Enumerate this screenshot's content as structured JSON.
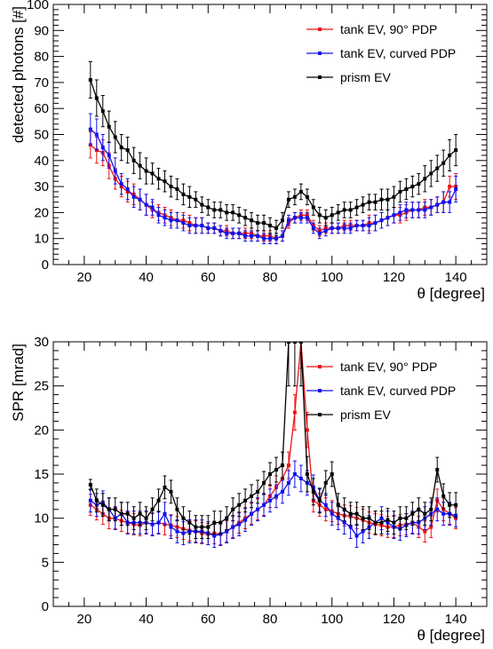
{
  "chart_data": [
    {
      "type": "line",
      "xlabel": "θ [degree]",
      "ylabel": "detected photons [#]",
      "xlim": [
        10,
        150
      ],
      "ylim": [
        0,
        100
      ],
      "xticks": [
        20,
        40,
        60,
        80,
        100,
        120,
        140
      ],
      "xtick_labels": [
        "20",
        "40",
        "60",
        "80",
        "100",
        "120",
        "140"
      ],
      "yticks": [
        0,
        10,
        20,
        30,
        40,
        50,
        60,
        70,
        80,
        90,
        100
      ],
      "ytick_labels": [
        "0",
        "10",
        "20",
        "30",
        "40",
        "50",
        "60",
        "70",
        "80",
        "90",
        "100"
      ],
      "legend_position": "top-right",
      "x": [
        22,
        24,
        26,
        28,
        30,
        32,
        34,
        36,
        38,
        40,
        42,
        44,
        46,
        48,
        50,
        52,
        54,
        56,
        58,
        60,
        62,
        64,
        66,
        68,
        70,
        72,
        74,
        76,
        78,
        80,
        82,
        84,
        86,
        88,
        90,
        92,
        94,
        96,
        98,
        100,
        102,
        104,
        106,
        108,
        110,
        112,
        114,
        116,
        118,
        120,
        122,
        124,
        126,
        128,
        130,
        132,
        134,
        136,
        138,
        140
      ],
      "series": [
        {
          "name": "tank EV, 90° PDP",
          "color": "#ee1111",
          "values": [
            46,
            44,
            43,
            38,
            33,
            30,
            28,
            27,
            25,
            23,
            21,
            20,
            19,
            18,
            17,
            17,
            16,
            15,
            15,
            14,
            14,
            13,
            13,
            12,
            12,
            12,
            12,
            11,
            11,
            11,
            10,
            11,
            16,
            18,
            19,
            19,
            15,
            13,
            14,
            14,
            14,
            15,
            15,
            15,
            15,
            16,
            16,
            17,
            18,
            19,
            19,
            20,
            21,
            21,
            22,
            22,
            23,
            24,
            30,
            30
          ],
          "errors": [
            5,
            5,
            5,
            5,
            4,
            4,
            4,
            4,
            4,
            4,
            3,
            3,
            3,
            3,
            3,
            3,
            3,
            3,
            3,
            2,
            2,
            2,
            2,
            2,
            2,
            2,
            2,
            2,
            2,
            2,
            2,
            2,
            2,
            2,
            2,
            2,
            2,
            2,
            2,
            2,
            2,
            2,
            2,
            2,
            2,
            3,
            3,
            3,
            3,
            3,
            3,
            3,
            3,
            3,
            3,
            3,
            3,
            4,
            4,
            5
          ]
        },
        {
          "name": "tank EV, curved PDP",
          "color": "#1111ee",
          "values": [
            52,
            50,
            45,
            42,
            36,
            31,
            29,
            26,
            25,
            23,
            22,
            19,
            18,
            17,
            17,
            16,
            15,
            15,
            15,
            14,
            14,
            13,
            12,
            12,
            12,
            11,
            11,
            11,
            10,
            10,
            10,
            11,
            17,
            18,
            18,
            18,
            14,
            12,
            13,
            14,
            14,
            14,
            14,
            15,
            15,
            15,
            16,
            17,
            18,
            19,
            20,
            21,
            21,
            21,
            21,
            22,
            23,
            24,
            24,
            29
          ],
          "errors": [
            6,
            6,
            5,
            5,
            5,
            4,
            4,
            4,
            4,
            4,
            3,
            3,
            3,
            3,
            3,
            3,
            3,
            3,
            3,
            2,
            2,
            2,
            2,
            2,
            2,
            2,
            2,
            2,
            2,
            2,
            2,
            2,
            2,
            2,
            2,
            2,
            2,
            2,
            2,
            2,
            2,
            2,
            2,
            2,
            2,
            3,
            3,
            3,
            3,
            3,
            3,
            3,
            3,
            3,
            3,
            3,
            3,
            4,
            4,
            5
          ]
        },
        {
          "name": "prism EV",
          "color": "#000000",
          "values": [
            71,
            64,
            59,
            53,
            49,
            45,
            44,
            40,
            38,
            36,
            35,
            33,
            32,
            30,
            29,
            27,
            26,
            25,
            23,
            22,
            21,
            21,
            20,
            20,
            19,
            18,
            17,
            16,
            16,
            15,
            14,
            17,
            25,
            26,
            28,
            26,
            22,
            19,
            18,
            19,
            20,
            21,
            21,
            22,
            23,
            24,
            24,
            25,
            25,
            26,
            28,
            29,
            30,
            31,
            33,
            35,
            37,
            39,
            42,
            44
          ],
          "errors": [
            7,
            7,
            6,
            6,
            6,
            5,
            5,
            5,
            5,
            5,
            4,
            4,
            4,
            4,
            4,
            4,
            4,
            3,
            3,
            3,
            3,
            3,
            3,
            3,
            3,
            3,
            3,
            3,
            3,
            3,
            3,
            3,
            3,
            3,
            3,
            3,
            3,
            3,
            3,
            3,
            3,
            3,
            3,
            3,
            3,
            3,
            3,
            4,
            4,
            4,
            4,
            4,
            4,
            4,
            5,
            5,
            5,
            5,
            6,
            6
          ]
        }
      ]
    },
    {
      "type": "line",
      "xlabel": "θ [degree]",
      "ylabel": "SPR [mrad]",
      "xlim": [
        10,
        150
      ],
      "ylim": [
        0,
        30
      ],
      "xticks": [
        20,
        40,
        60,
        80,
        100,
        120,
        140
      ],
      "xtick_labels": [
        "20",
        "40",
        "60",
        "80",
        "100",
        "120",
        "140"
      ],
      "yticks": [
        0,
        5,
        10,
        15,
        20,
        25,
        30
      ],
      "ytick_labels": [
        "0",
        "5",
        "10",
        "15",
        "20",
        "25",
        "30"
      ],
      "legend_position": "top-right",
      "x": [
        22,
        24,
        26,
        28,
        30,
        32,
        34,
        36,
        38,
        40,
        42,
        44,
        46,
        48,
        50,
        52,
        54,
        56,
        58,
        60,
        62,
        64,
        66,
        68,
        70,
        72,
        74,
        76,
        78,
        80,
        82,
        84,
        86,
        88,
        90,
        92,
        94,
        96,
        98,
        100,
        102,
        104,
        106,
        108,
        110,
        112,
        114,
        116,
        118,
        120,
        122,
        124,
        126,
        128,
        130,
        132,
        134,
        136,
        138,
        140
      ],
      "series": [
        {
          "name": "tank EV, 90° PDP",
          "color": "#ee1111",
          "values": [
            11.5,
            11,
            10.5,
            10,
            10,
            9.7,
            9.5,
            9.3,
            9.2,
            9.5,
            9.3,
            9.5,
            9.3,
            9.2,
            9,
            8.8,
            8.6,
            8.5,
            8.3,
            8.2,
            8.3,
            8.2,
            8.5,
            9,
            9.5,
            10,
            10.5,
            11,
            11.5,
            12.5,
            13.5,
            14.5,
            16,
            22,
            30,
            20,
            12,
            11.5,
            11,
            10.8,
            10.5,
            10.3,
            10.2,
            10,
            9.8,
            9.5,
            9.3,
            9.2,
            9,
            9,
            9.2,
            9.3,
            9.5,
            9,
            8.5,
            9,
            12,
            11,
            10.5,
            10
          ],
          "errors": [
            1.2,
            1.2,
            1.2,
            1.2,
            1.2,
            1.2,
            1.2,
            1.2,
            1.2,
            1.2,
            1.2,
            1.2,
            1.2,
            1.2,
            1.2,
            1.2,
            1.2,
            1.2,
            1.2,
            1.2,
            1.2,
            1.2,
            1.2,
            1.2,
            1.2,
            1.2,
            1.2,
            1.2,
            1.2,
            1.3,
            1.3,
            1.4,
            1.5,
            2,
            3,
            2,
            1.3,
            1.3,
            1.3,
            1.2,
            1.2,
            1.2,
            1.2,
            1.2,
            1.2,
            1.2,
            1.2,
            1.2,
            1.2,
            1.2,
            1.2,
            1.2,
            1.2,
            1.2,
            1.2,
            1.2,
            1.3,
            1.3,
            1.2,
            1.2
          ]
        },
        {
          "name": "tank EV, curved PDP",
          "color": "#1111ee",
          "values": [
            12,
            11.5,
            11.8,
            11,
            10,
            10.5,
            9.5,
            9.5,
            9.5,
            9.5,
            9.3,
            9.5,
            10.5,
            9,
            8.5,
            8.3,
            8.5,
            8.5,
            8.5,
            8.3,
            8,
            8.2,
            8.5,
            9,
            9.3,
            9.8,
            10.5,
            11,
            11.5,
            12,
            12.5,
            13,
            14,
            15,
            14.5,
            14,
            13.5,
            12,
            11.5,
            10.5,
            10,
            9.5,
            9,
            8,
            8.5,
            9,
            9.5,
            10,
            9.5,
            9,
            8.8,
            9.2,
            9.5,
            9.5,
            10,
            10.5,
            11,
            10.5,
            10.5,
            10.3
          ],
          "errors": [
            1.3,
            1.3,
            1.3,
            1.3,
            1.3,
            1.3,
            1.3,
            1.3,
            1.3,
            1.3,
            1.3,
            1.3,
            1.3,
            1.3,
            1.3,
            1.3,
            1.3,
            1.3,
            1.3,
            1.3,
            1.3,
            1.3,
            1.3,
            1.3,
            1.3,
            1.3,
            1.3,
            1.3,
            1.3,
            1.3,
            1.3,
            1.3,
            1.4,
            1.5,
            1.5,
            1.4,
            1.4,
            1.3,
            1.3,
            1.3,
            1.3,
            1.3,
            1.3,
            1.3,
            1.3,
            1.3,
            1.3,
            1.3,
            1.3,
            1.3,
            1.3,
            1.3,
            1.3,
            1.3,
            1.3,
            1.3,
            1.3,
            1.3,
            1.3,
            1.3
          ]
        },
        {
          "name": "prism EV",
          "color": "#000000",
          "values": [
            13.8,
            12,
            11.5,
            11,
            11,
            10.5,
            10.5,
            10,
            10.5,
            10,
            11,
            12,
            13.5,
            13,
            11,
            10,
            9.5,
            9,
            9,
            9,
            9.5,
            9.5,
            10,
            11,
            11.5,
            12,
            12.5,
            13,
            14,
            15,
            15.5,
            16,
            30,
            30,
            30,
            15,
            13,
            12,
            14,
            15,
            11.5,
            11,
            10.5,
            10.5,
            10,
            10,
            9.5,
            9.5,
            9.8,
            9.5,
            10,
            10,
            10.5,
            11,
            10.5,
            11,
            15.5,
            12.5,
            11.5,
            11.5
          ],
          "errors": [
            0.6,
            1.3,
            1.3,
            1.3,
            1.3,
            1.3,
            1.3,
            1.3,
            1.3,
            1.3,
            1.3,
            1.3,
            1.3,
            1.3,
            1.3,
            1.3,
            1.3,
            1.3,
            1.3,
            1.3,
            1.3,
            1.3,
            1.3,
            1.3,
            1.3,
            1.3,
            1.3,
            1.3,
            1.3,
            1.3,
            1.4,
            1.5,
            5,
            5,
            5,
            2,
            1.5,
            1.4,
            1.4,
            1.4,
            1.3,
            1.3,
            1.3,
            1.3,
            1.3,
            1.3,
            1.3,
            1.3,
            1.3,
            1.3,
            1.3,
            1.3,
            1.3,
            1.3,
            1.3,
            1.3,
            1.4,
            1.4,
            1.4,
            1.4
          ]
        }
      ]
    }
  ]
}
